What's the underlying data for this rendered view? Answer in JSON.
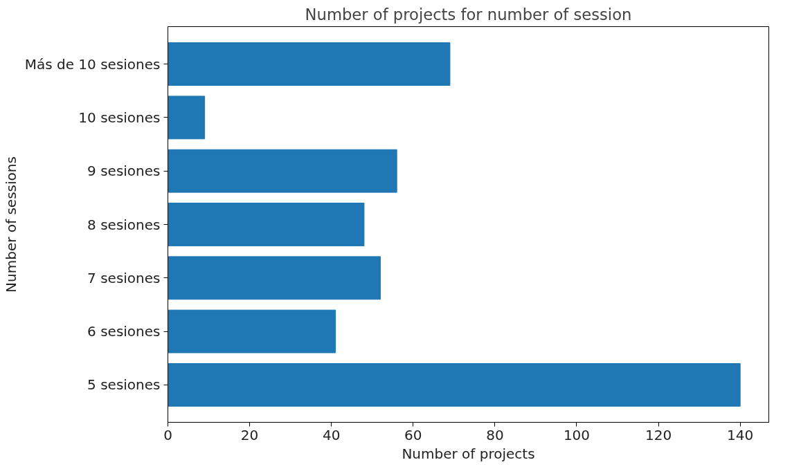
{
  "chart_data": {
    "type": "bar",
    "orientation": "horizontal",
    "title": "Number of projects for number of session",
    "xlabel": "Number of projects",
    "ylabel": "Number of sessions",
    "categories": [
      "Más de 10 sesiones",
      "10 sesiones",
      "9 sesiones",
      "8 sesiones",
      "7 sesiones",
      "6 sesiones",
      "5 sesiones"
    ],
    "values": [
      69,
      9,
      56,
      48,
      52,
      41,
      140
    ],
    "color": "#1f77b4",
    "xlim": [
      0,
      147
    ],
    "xticks": [
      0,
      20,
      40,
      60,
      80,
      100,
      120,
      140
    ],
    "grid": false
  }
}
